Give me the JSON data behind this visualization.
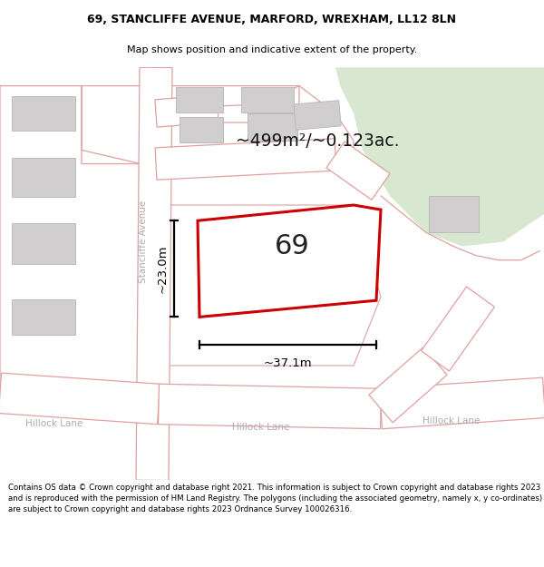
{
  "title_line1": "69, STANCLIFFE AVENUE, MARFORD, WREXHAM, LL12 8LN",
  "title_line2": "Map shows position and indicative extent of the property.",
  "footer_text": "Contains OS data © Crown copyright and database right 2021. This information is subject to Crown copyright and database rights 2023 and is reproduced with the permission of HM Land Registry. The polygons (including the associated geometry, namely x, y co-ordinates) are subject to Crown copyright and database rights 2023 Ordnance Survey 100026316.",
  "area_label": "~499m²/~0.123ac.",
  "width_label": "~37.1m",
  "height_label": "~23.0m",
  "plot_number": "69",
  "map_bg": "#eeebe6",
  "road_color": "#ffffff",
  "road_outline_color": "#e0a0a0",
  "building_color": "#d0cece",
  "building_outline": "#bbbbbb",
  "green_area_color": "#d8e8d0",
  "property_fill": "#ffffff",
  "property_outline": "#cc0000",
  "dim_line_color": "#000000",
  "road_label_color": "#aaaaaa"
}
